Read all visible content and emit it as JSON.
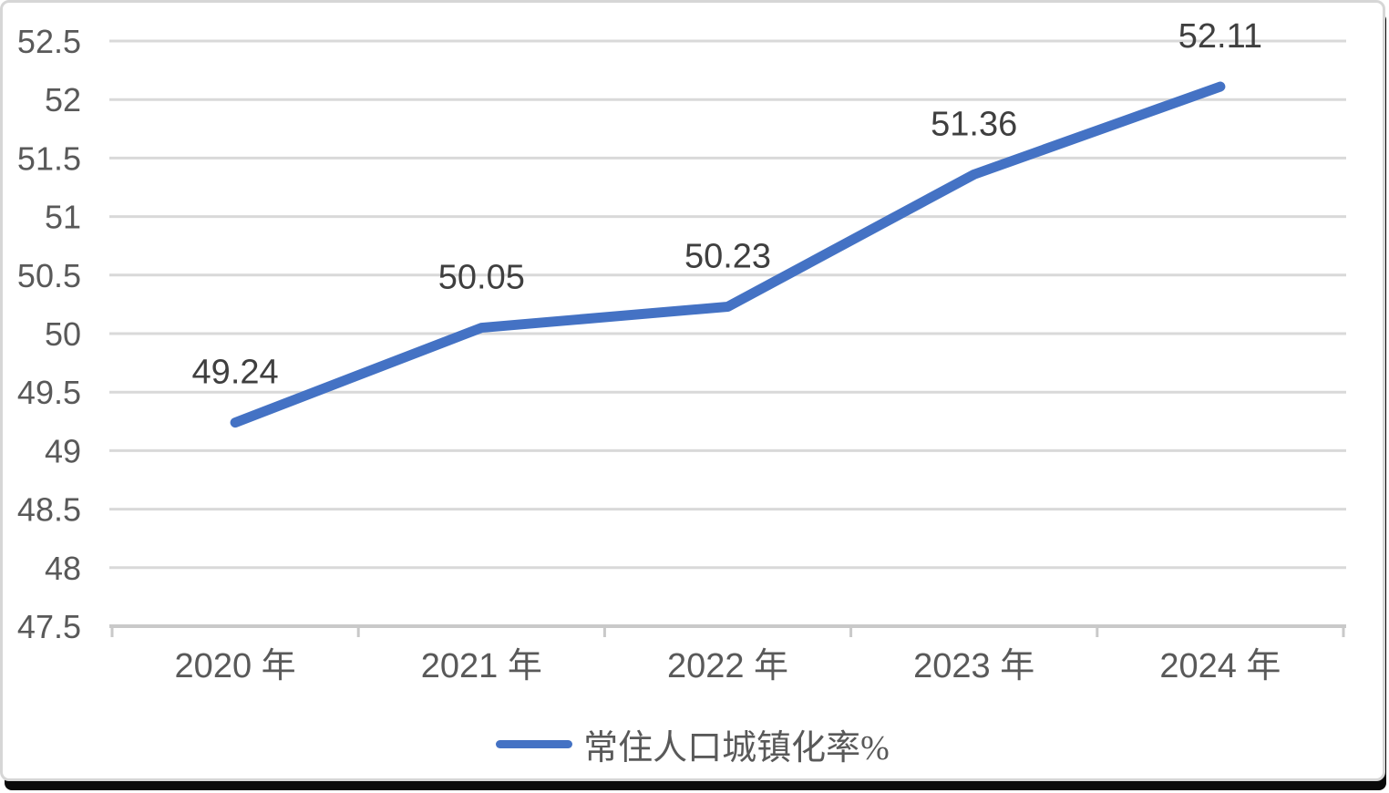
{
  "chart_data": {
    "type": "line",
    "title": "",
    "xlabel": "",
    "ylabel": "",
    "categories": [
      "2020 年",
      "2021 年",
      "2022 年",
      "2023 年",
      "2024 年"
    ],
    "series": [
      {
        "name": "常住人口城镇化率%",
        "values": [
          49.24,
          50.05,
          50.23,
          51.36,
          52.11
        ],
        "color": "#4472C4"
      }
    ],
    "data_labels": [
      "49.24",
      "50.05",
      "50.23",
      "51.36",
      "52.11"
    ],
    "ylim": [
      47.5,
      52.5
    ],
    "ytick_step": 0.5,
    "ytick_labels": [
      "47.5",
      "48",
      "48.5",
      "49",
      "49.5",
      "50",
      "50.5",
      "51",
      "51.5",
      "52",
      "52.5"
    ],
    "grid": true,
    "legend_position": "bottom",
    "colors": {
      "line": "#4472C4",
      "gridline": "#D9D9D9",
      "axis_line": "#C9C9C9",
      "axis_text": "#595959",
      "data_label_text": "#3F3F3F",
      "legend_text": "#595959"
    }
  },
  "legend": {
    "label": "常住人口城镇化率%"
  }
}
